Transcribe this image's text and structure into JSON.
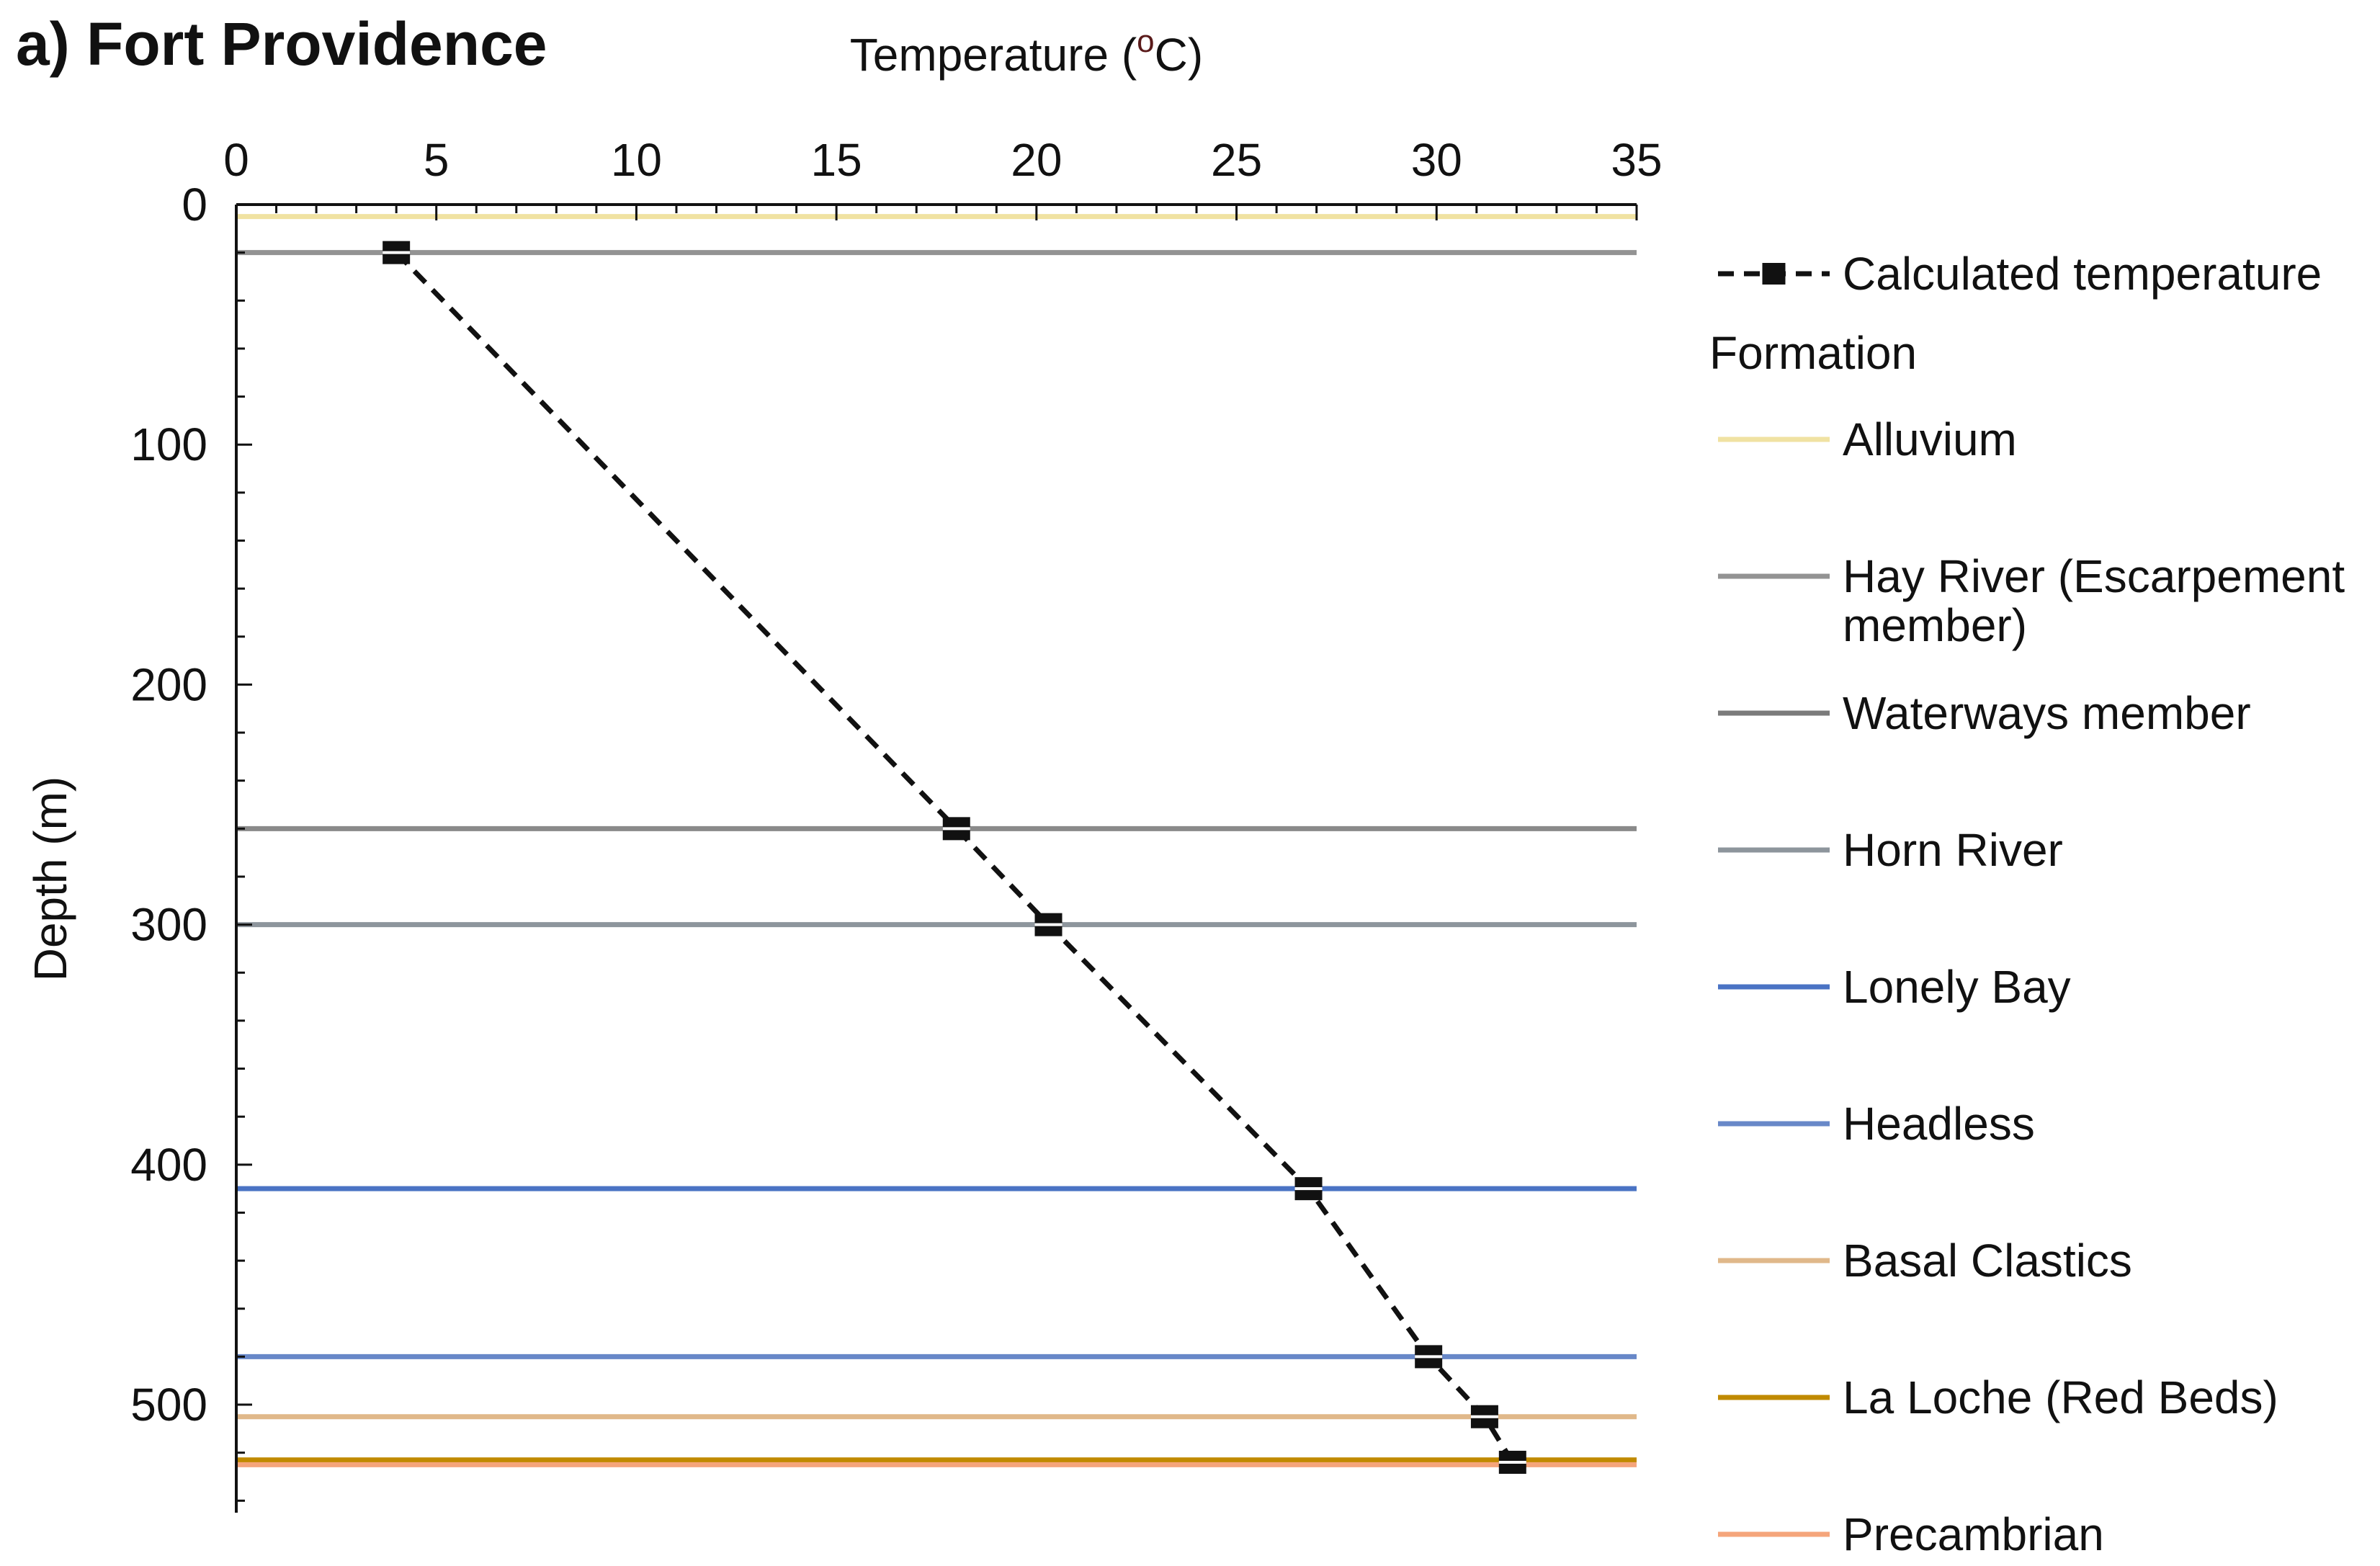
{
  "chart_data": {
    "type": "line",
    "title": "a) Fort Providence",
    "xlabel_main": "Temperature (",
    "xlabel_sup": "o",
    "xlabel_end": "C)",
    "ylabel": "Depth (m)",
    "xlim": [
      0,
      35
    ],
    "ylim": [
      0,
      545
    ],
    "x_axis_position": "top",
    "y_inverted": true,
    "grid": false,
    "legend_position": "right",
    "x_ticks": [
      0,
      5,
      10,
      15,
      20,
      25,
      30,
      35
    ],
    "y_ticks": [
      0,
      100,
      200,
      300,
      400,
      500
    ],
    "series": [
      {
        "name": "Calculated  temperature",
        "style": "dashed",
        "marker": "square",
        "color": "#111111",
        "points": [
          {
            "x": 4.0,
            "y": 20
          },
          {
            "x": 18.0,
            "y": 260
          },
          {
            "x": 20.3,
            "y": 300
          },
          {
            "x": 26.8,
            "y": 410
          },
          {
            "x": 29.8,
            "y": 480
          },
          {
            "x": 31.2,
            "y": 505
          },
          {
            "x": 31.9,
            "y": 524
          }
        ]
      }
    ],
    "formation_title": "Formation",
    "formations": [
      {
        "name": "Alluvium",
        "color": "#f0e2a2"
      },
      {
        "name": "Hay River (Escarpement\nmember)",
        "color": "#939393"
      },
      {
        "name": "Waterways member",
        "color": "#7b7b7b"
      },
      {
        "name": "Horn River",
        "color": "#8d959c"
      },
      {
        "name": "Lonely Bay",
        "color": "#4a73c4"
      },
      {
        "name": "Headless",
        "color": "#6888c8"
      },
      {
        "name": "Basal Clastics",
        "color": "#e0b88a"
      },
      {
        "name": "La Loche (Red Beds)",
        "color": "#c08a00"
      },
      {
        "name": "Precambrian",
        "color": "#f5a57b"
      }
    ],
    "boundary_lines": [
      {
        "depth": 5,
        "color": "#f0e2a2"
      },
      {
        "depth": 20,
        "color": "#939393"
      },
      {
        "depth": 260,
        "color": "#8a8a8a"
      },
      {
        "depth": 300,
        "color": "#8d959c"
      },
      {
        "depth": 410,
        "color": "#4a73c4"
      },
      {
        "depth": 480,
        "color": "#6888c8"
      },
      {
        "depth": 505,
        "color": "#e0b88a"
      },
      {
        "depth": 523,
        "color": "#c08a00"
      },
      {
        "depth": 525,
        "color": "#f5a57b"
      }
    ]
  }
}
